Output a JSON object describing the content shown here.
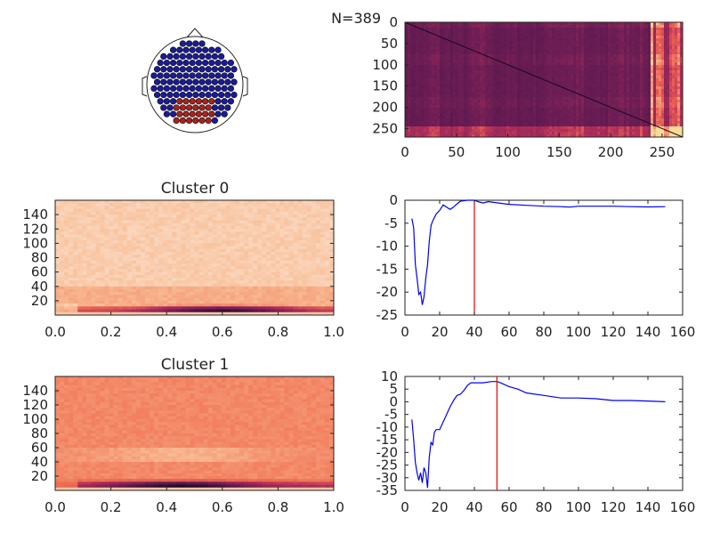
{
  "header": {
    "n_label": "N=389"
  },
  "colors": {
    "sensor_normal": "#1a1aa0",
    "sensor_cluster": "#b0201a",
    "series": "#0000ee",
    "marker": "#ee0000"
  },
  "chart_data": [
    {
      "type": "scatter",
      "name": "sensor-topomap",
      "groups": [
        "cluster",
        "other"
      ]
    },
    {
      "type": "heatmap",
      "name": "similarity-matrix",
      "xlim": [
        0,
        270
      ],
      "ylim": [
        270,
        0
      ],
      "xticks": [
        0,
        50,
        100,
        150,
        200,
        250
      ],
      "yticks": [
        0,
        50,
        100,
        150,
        200,
        250
      ]
    },
    {
      "type": "heatmap",
      "name": "cluster-0-heatmap",
      "title": "Cluster 0",
      "xlim": [
        0,
        1.0
      ],
      "ylim": [
        0,
        160
      ],
      "xticks": [
        "0.0",
        "0.2",
        "0.4",
        "0.6",
        "0.8",
        "1.0"
      ],
      "yticks": [
        20,
        40,
        60,
        80,
        100,
        120,
        140
      ]
    },
    {
      "type": "line",
      "name": "cluster-0-line",
      "xlim": [
        0,
        160
      ],
      "ylim": [
        -25,
        0
      ],
      "xticks": [
        0,
        20,
        40,
        60,
        80,
        100,
        120,
        140,
        160
      ],
      "yticks": [
        0,
        -5,
        -10,
        -15,
        -20,
        -25
      ],
      "marker_x": 40,
      "x": [
        4,
        5,
        6,
        7,
        8,
        9,
        10,
        11,
        12,
        13,
        14,
        15,
        16,
        18,
        20,
        22,
        24,
        26,
        28,
        30,
        32,
        34,
        36,
        38,
        40,
        42,
        45,
        48,
        52,
        56,
        60,
        70,
        80,
        90,
        95,
        100,
        110,
        120,
        130,
        140,
        150
      ],
      "y": [
        -4,
        -6,
        -14,
        -17,
        -20.5,
        -20,
        -22.8,
        -21,
        -17,
        -14,
        -9,
        -5.5,
        -4.5,
        -3,
        -2.2,
        -1.0,
        -1.5,
        -2.0,
        -1.5,
        -0.8,
        -0.2,
        -0.1,
        0,
        0,
        0,
        -0.3,
        -0.6,
        -0.3,
        -0.5,
        -0.7,
        -0.9,
        -1.1,
        -1.3,
        -1.4,
        -1.5,
        -1.3,
        -1.3,
        -1.3,
        -1.4,
        -1.45,
        -1.4
      ]
    },
    {
      "type": "heatmap",
      "name": "cluster-1-heatmap",
      "title": "Cluster 1",
      "xlim": [
        0,
        1.0
      ],
      "ylim": [
        0,
        160
      ],
      "xticks": [
        "0.0",
        "0.2",
        "0.4",
        "0.6",
        "0.8",
        "1.0"
      ],
      "yticks": [
        20,
        40,
        60,
        80,
        100,
        120,
        140
      ]
    },
    {
      "type": "line",
      "name": "cluster-1-line",
      "xlim": [
        0,
        160
      ],
      "ylim": [
        -35,
        10
      ],
      "xticks": [
        0,
        20,
        40,
        60,
        80,
        100,
        120,
        140,
        160
      ],
      "yticks": [
        10,
        5,
        0,
        -5,
        -10,
        -15,
        -20,
        -25,
        -30,
        -35
      ],
      "marker_x": 53,
      "x": [
        4,
        5,
        6,
        7,
        8,
        9,
        10,
        11,
        12,
        13,
        14,
        15,
        16,
        17,
        18,
        20,
        22,
        24,
        26,
        28,
        30,
        32,
        34,
        36,
        38,
        40,
        45,
        50,
        53,
        55,
        60,
        65,
        70,
        80,
        90,
        100,
        110,
        120,
        130,
        140,
        150
      ],
      "y": [
        -7,
        -15,
        -24,
        -28,
        -31,
        -28,
        -32,
        -26,
        -28,
        -34,
        -22,
        -16,
        -17,
        -12,
        -11,
        -11,
        -8,
        -5,
        -2,
        0.5,
        2.5,
        3,
        4.5,
        6.5,
        7.5,
        7.5,
        7.5,
        8,
        8,
        7.5,
        6,
        5,
        3.5,
        2.5,
        1.5,
        1.5,
        1.2,
        0.5,
        0.5,
        0.3,
        0
      ]
    }
  ]
}
